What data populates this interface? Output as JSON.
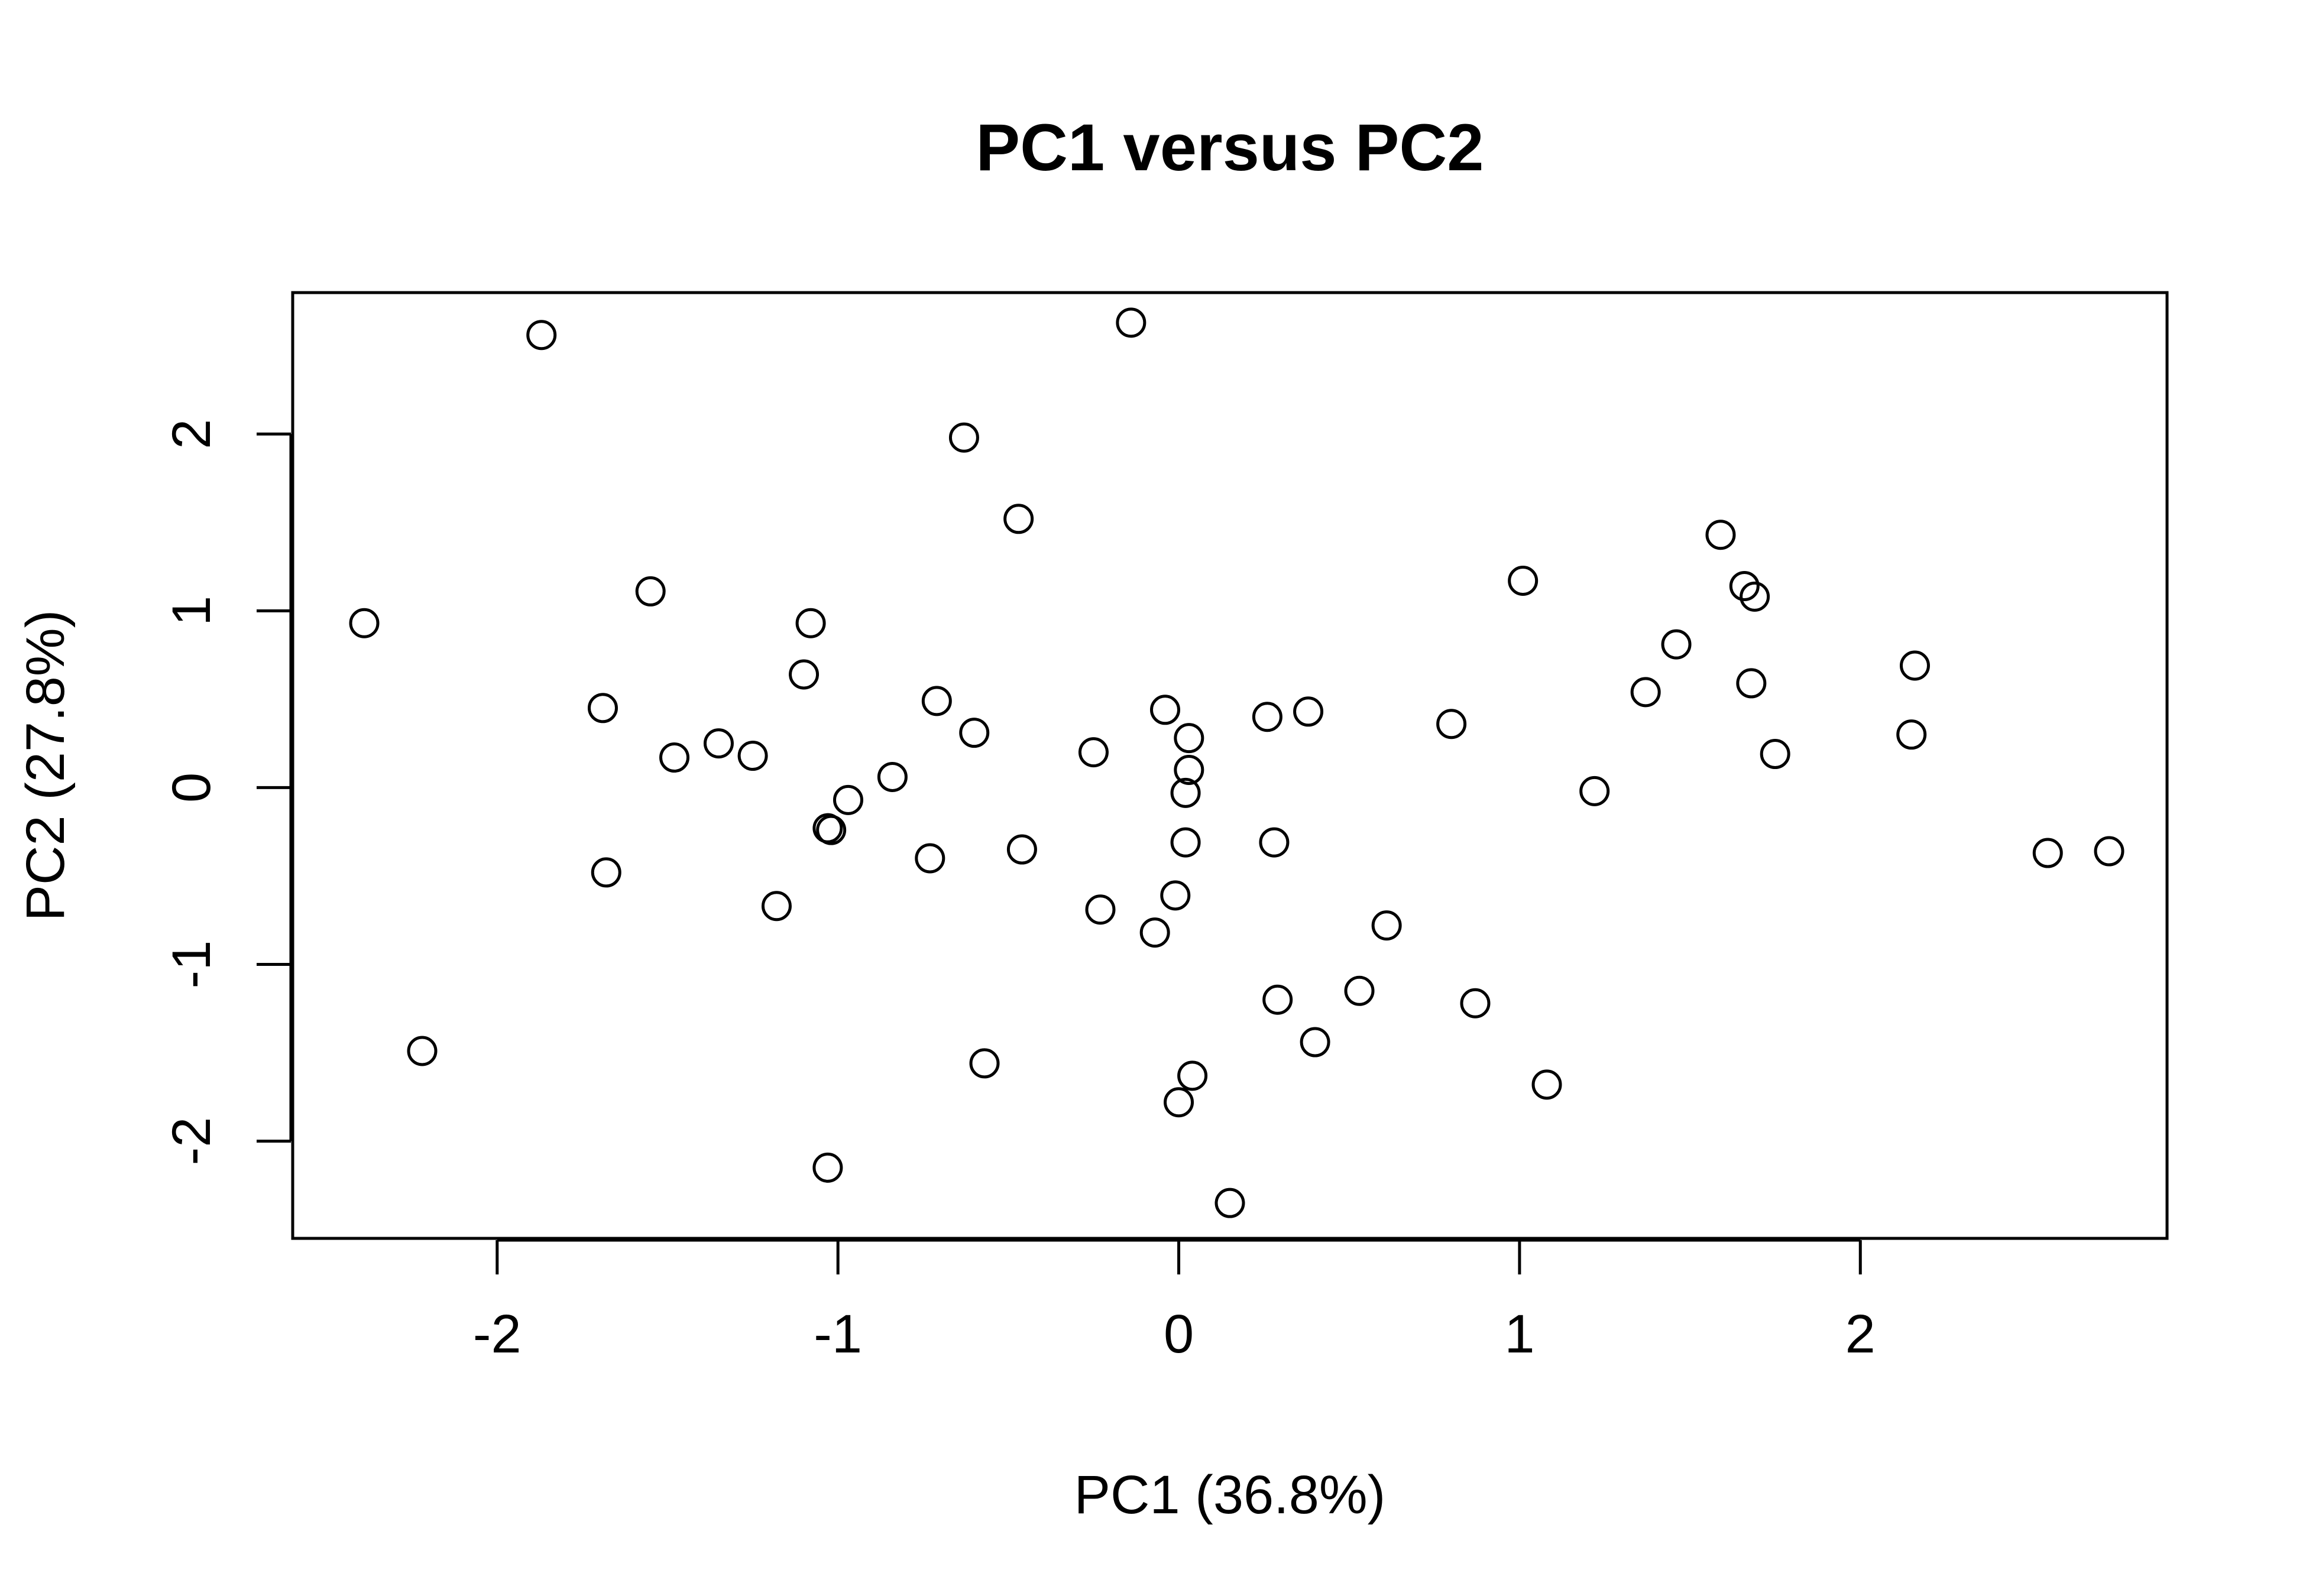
{
  "chart_data": {
    "type": "scatter",
    "title": "PC1 versus PC2",
    "xlabel": "PC1 (36.8%)",
    "ylabel": "PC2 (27.8%)",
    "xlim": [
      -2.6,
      2.9
    ],
    "ylim": [
      -2.55,
      2.8
    ],
    "x_ticks": [
      -2,
      -1,
      0,
      1,
      2
    ],
    "x_tick_labels": [
      "-2",
      "-1",
      "0",
      "1",
      "2"
    ],
    "y_ticks": [
      -2,
      -1,
      0,
      1,
      2
    ],
    "y_tick_labels": [
      "-2",
      "-1",
      "0",
      "1",
      "2"
    ],
    "grid": false,
    "marker": "open-circle",
    "points": [
      {
        "x": -1.87,
        "y": 2.56
      },
      {
        "x": -0.14,
        "y": 2.63
      },
      {
        "x": -0.63,
        "y": 1.98
      },
      {
        "x": -0.47,
        "y": 1.52
      },
      {
        "x": -2.39,
        "y": 0.93
      },
      {
        "x": -1.55,
        "y": 1.11
      },
      {
        "x": -1.08,
        "y": 0.93
      },
      {
        "x": -1.1,
        "y": 0.64
      },
      {
        "x": -1.69,
        "y": 0.45
      },
      {
        "x": -1.48,
        "y": 0.17
      },
      {
        "x": -1.35,
        "y": 0.25
      },
      {
        "x": -1.25,
        "y": 0.18
      },
      {
        "x": -0.71,
        "y": 0.49
      },
      {
        "x": -0.6,
        "y": 0.31
      },
      {
        "x": -0.84,
        "y": 0.06
      },
      {
        "x": -0.97,
        "y": -0.07
      },
      {
        "x": -1.03,
        "y": -0.23
      },
      {
        "x": -1.02,
        "y": -0.24
      },
      {
        "x": -1.68,
        "y": -0.48
      },
      {
        "x": -1.18,
        "y": -0.67
      },
      {
        "x": -0.73,
        "y": -0.4
      },
      {
        "x": -0.46,
        "y": -0.35
      },
      {
        "x": -0.25,
        "y": 0.2
      },
      {
        "x": -0.23,
        "y": -0.69
      },
      {
        "x": -0.04,
        "y": 0.44
      },
      {
        "x": 0.03,
        "y": 0.28
      },
      {
        "x": 0.03,
        "y": 0.1
      },
      {
        "x": 0.02,
        "y": -0.03
      },
      {
        "x": 0.02,
        "y": -0.31
      },
      {
        "x": -0.01,
        "y": -0.61
      },
      {
        "x": -0.07,
        "y": -0.82
      },
      {
        "x": 0.26,
        "y": 0.4
      },
      {
        "x": 0.38,
        "y": 0.43
      },
      {
        "x": 0.28,
        "y": -0.31
      },
      {
        "x": 0.61,
        "y": -0.78
      },
      {
        "x": 0.29,
        "y": -1.2
      },
      {
        "x": 0.53,
        "y": -1.15
      },
      {
        "x": 0.4,
        "y": -1.44
      },
      {
        "x": 0.04,
        "y": -1.63
      },
      {
        "x": 0.0,
        "y": -1.78
      },
      {
        "x": -0.57,
        "y": -1.56
      },
      {
        "x": -2.22,
        "y": -1.49
      },
      {
        "x": -1.03,
        "y": -2.15
      },
      {
        "x": 0.15,
        "y": -2.35
      },
      {
        "x": 0.8,
        "y": 0.36
      },
      {
        "x": 0.87,
        "y": -1.22
      },
      {
        "x": 1.08,
        "y": -1.68
      },
      {
        "x": 1.01,
        "y": 1.17
      },
      {
        "x": 1.22,
        "y": -0.02
      },
      {
        "x": 1.37,
        "y": 0.54
      },
      {
        "x": 1.46,
        "y": 0.81
      },
      {
        "x": 1.59,
        "y": 1.43
      },
      {
        "x": 1.66,
        "y": 1.14
      },
      {
        "x": 1.69,
        "y": 1.08
      },
      {
        "x": 1.68,
        "y": 0.59
      },
      {
        "x": 1.75,
        "y": 0.19
      },
      {
        "x": 2.16,
        "y": 0.69
      },
      {
        "x": 2.15,
        "y": 0.3
      },
      {
        "x": 2.55,
        "y": -0.37
      },
      {
        "x": 2.73,
        "y": -0.36
      }
    ]
  }
}
